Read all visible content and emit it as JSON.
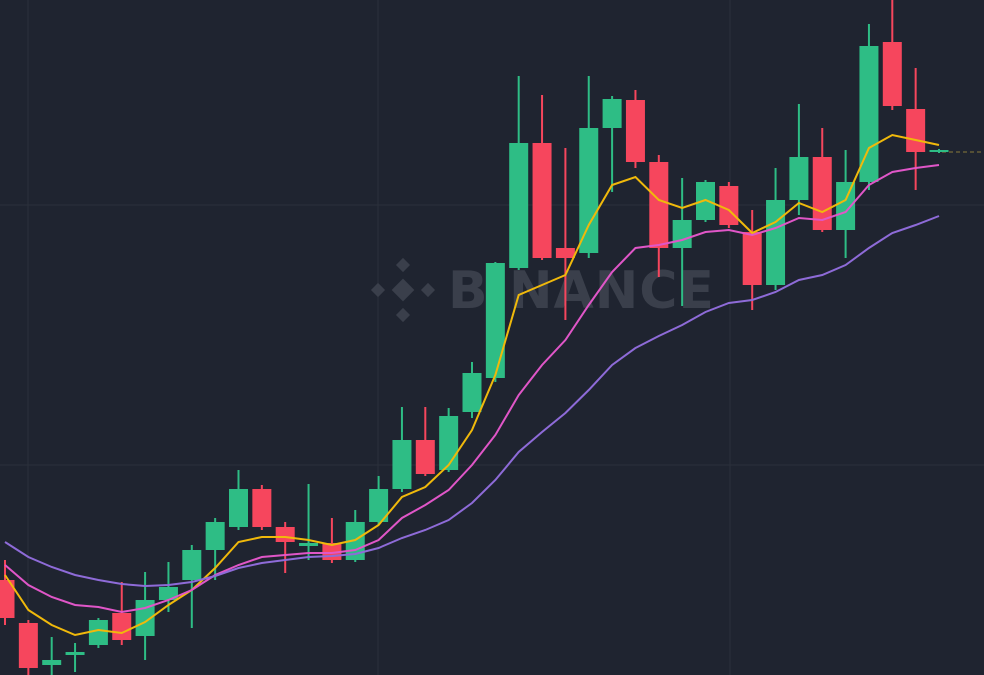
{
  "chart_data": {
    "type": "candlestick",
    "watermark": "BINANCE",
    "up_color": "#2ebd85",
    "down_color": "#f6465d",
    "ylim": [
      0,
      675
    ],
    "open": [
      95,
      52,
      10,
      20,
      30,
      62,
      39,
      75,
      95,
      125,
      148,
      186,
      148,
      129,
      132,
      115,
      153,
      186,
      235,
      205,
      263,
      297,
      407,
      532,
      427,
      422,
      547,
      575,
      513,
      427,
      455,
      489,
      443,
      390,
      475,
      518,
      445,
      493,
      633,
      566,
      523
    ],
    "high": [
      115,
      55,
      38,
      32,
      57,
      93,
      103,
      113,
      130,
      157,
      205,
      190,
      153,
      191,
      157,
      165,
      199,
      268,
      268,
      267,
      313,
      413,
      599,
      580,
      527,
      599,
      579,
      585,
      520,
      497,
      495,
      493,
      465,
      507,
      571,
      547,
      525,
      651,
      675,
      607,
      526
    ],
    "low": [
      50,
      0,
      0,
      3,
      27,
      30,
      15,
      63,
      47,
      95,
      145,
      145,
      102,
      115,
      112,
      113,
      150,
      183,
      199,
      203,
      257,
      293,
      405,
      415,
      355,
      417,
      483,
      507,
      398,
      369,
      453,
      447,
      365,
      385,
      460,
      443,
      417,
      485,
      565,
      485,
      522
    ],
    "close": [
      57,
      7,
      15,
      23,
      55,
      35,
      75,
      88,
      125,
      153,
      186,
      148,
      133,
      132,
      115,
      153,
      186,
      235,
      201,
      259,
      302,
      412,
      532,
      417,
      417,
      547,
      576,
      513,
      427,
      455,
      493,
      450,
      390,
      475,
      518,
      445,
      493,
      629,
      569,
      523,
      525
    ],
    "lines": [
      {
        "color": "#f0b90b",
        "values": [
          100,
          65,
          50,
          40,
          45,
          42,
          53,
          70,
          85,
          107,
          133,
          138,
          138,
          135,
          130,
          135,
          150,
          178,
          188,
          210,
          245,
          300,
          380,
          390,
          400,
          450,
          490,
          498,
          475,
          467,
          475,
          465,
          442,
          453,
          472,
          463,
          475,
          527,
          540,
          535,
          530
        ]
      },
      {
        "color": "#e056c8",
        "values": [
          110,
          90,
          78,
          70,
          68,
          63,
          67,
          75,
          85,
          100,
          110,
          118,
          120,
          122,
          122,
          125,
          135,
          157,
          170,
          185,
          210,
          240,
          280,
          310,
          335,
          370,
          403,
          427,
          430,
          435,
          443,
          445,
          440,
          447,
          457,
          455,
          463,
          490,
          503,
          507,
          510
        ]
      },
      {
        "color": "#8e6bd8",
        "values": [
          133,
          118,
          108,
          100,
          95,
          91,
          89,
          90,
          93,
          99,
          107,
          112,
          115,
          118,
          119,
          121,
          127,
          137,
          145,
          155,
          172,
          195,
          223,
          243,
          262,
          285,
          310,
          327,
          339,
          350,
          363,
          372,
          375,
          383,
          395,
          400,
          410,
          427,
          442,
          450,
          459
        ]
      }
    ]
  }
}
